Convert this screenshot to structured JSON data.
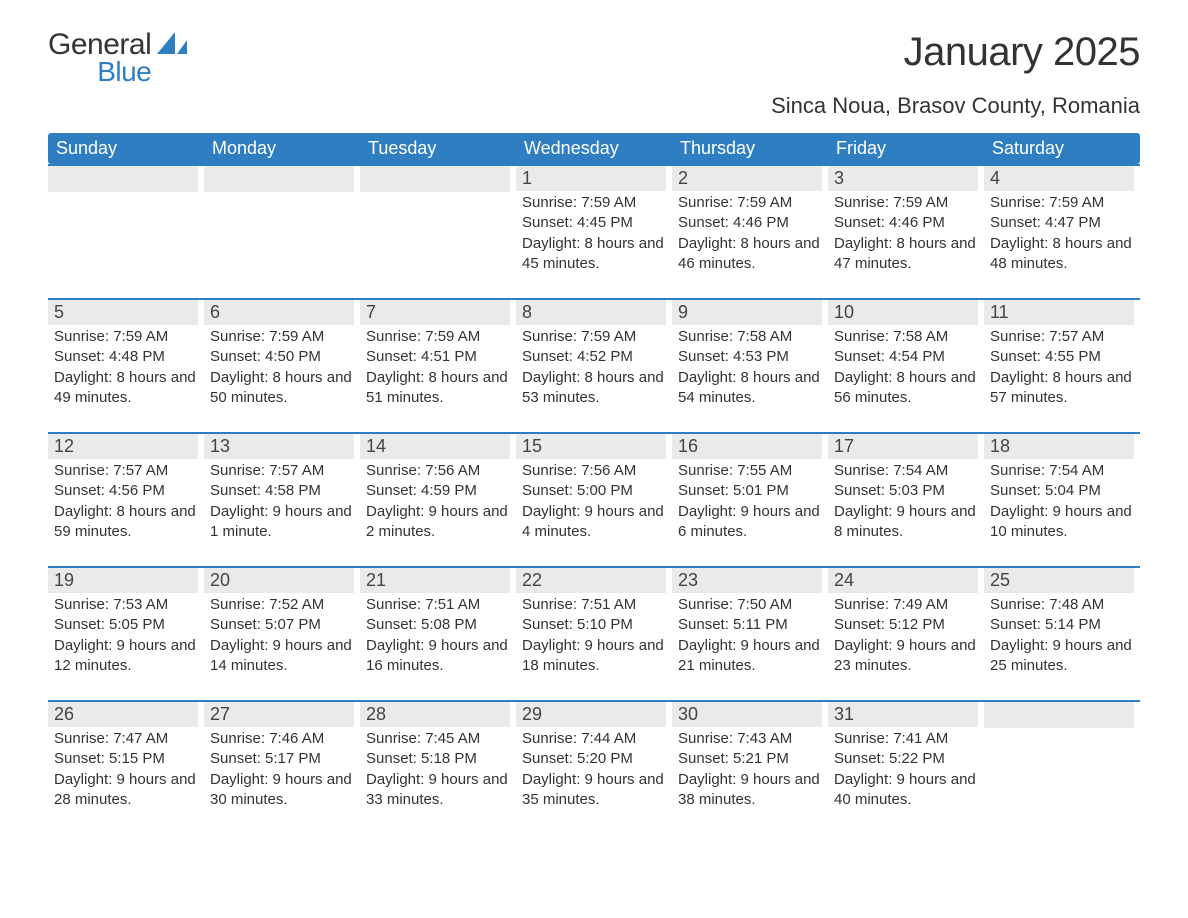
{
  "logo": {
    "line1": "General",
    "line2": "Blue"
  },
  "title": "January 2025",
  "location": "Sinca Noua, Brasov County, Romania",
  "colors": {
    "brand_blue": "#2f7ec2",
    "header_gray": "#eaeaea",
    "text": "#333333",
    "background": "#ffffff"
  },
  "dow": [
    "Sunday",
    "Monday",
    "Tuesday",
    "Wednesday",
    "Thursday",
    "Friday",
    "Saturday"
  ],
  "weeks": [
    [
      {
        "day": "",
        "sunrise": "",
        "sunset": "",
        "daylight": ""
      },
      {
        "day": "",
        "sunrise": "",
        "sunset": "",
        "daylight": ""
      },
      {
        "day": "",
        "sunrise": "",
        "sunset": "",
        "daylight": ""
      },
      {
        "day": "1",
        "sunrise": "Sunrise: 7:59 AM",
        "sunset": "Sunset: 4:45 PM",
        "daylight": "Daylight: 8 hours and 45 minutes."
      },
      {
        "day": "2",
        "sunrise": "Sunrise: 7:59 AM",
        "sunset": "Sunset: 4:46 PM",
        "daylight": "Daylight: 8 hours and 46 minutes."
      },
      {
        "day": "3",
        "sunrise": "Sunrise: 7:59 AM",
        "sunset": "Sunset: 4:46 PM",
        "daylight": "Daylight: 8 hours and 47 minutes."
      },
      {
        "day": "4",
        "sunrise": "Sunrise: 7:59 AM",
        "sunset": "Sunset: 4:47 PM",
        "daylight": "Daylight: 8 hours and 48 minutes."
      }
    ],
    [
      {
        "day": "5",
        "sunrise": "Sunrise: 7:59 AM",
        "sunset": "Sunset: 4:48 PM",
        "daylight": "Daylight: 8 hours and 49 minutes."
      },
      {
        "day": "6",
        "sunrise": "Sunrise: 7:59 AM",
        "sunset": "Sunset: 4:50 PM",
        "daylight": "Daylight: 8 hours and 50 minutes."
      },
      {
        "day": "7",
        "sunrise": "Sunrise: 7:59 AM",
        "sunset": "Sunset: 4:51 PM",
        "daylight": "Daylight: 8 hours and 51 minutes."
      },
      {
        "day": "8",
        "sunrise": "Sunrise: 7:59 AM",
        "sunset": "Sunset: 4:52 PM",
        "daylight": "Daylight: 8 hours and 53 minutes."
      },
      {
        "day": "9",
        "sunrise": "Sunrise: 7:58 AM",
        "sunset": "Sunset: 4:53 PM",
        "daylight": "Daylight: 8 hours and 54 minutes."
      },
      {
        "day": "10",
        "sunrise": "Sunrise: 7:58 AM",
        "sunset": "Sunset: 4:54 PM",
        "daylight": "Daylight: 8 hours and 56 minutes."
      },
      {
        "day": "11",
        "sunrise": "Sunrise: 7:57 AM",
        "sunset": "Sunset: 4:55 PM",
        "daylight": "Daylight: 8 hours and 57 minutes."
      }
    ],
    [
      {
        "day": "12",
        "sunrise": "Sunrise: 7:57 AM",
        "sunset": "Sunset: 4:56 PM",
        "daylight": "Daylight: 8 hours and 59 minutes."
      },
      {
        "day": "13",
        "sunrise": "Sunrise: 7:57 AM",
        "sunset": "Sunset: 4:58 PM",
        "daylight": "Daylight: 9 hours and 1 minute."
      },
      {
        "day": "14",
        "sunrise": "Sunrise: 7:56 AM",
        "sunset": "Sunset: 4:59 PM",
        "daylight": "Daylight: 9 hours and 2 minutes."
      },
      {
        "day": "15",
        "sunrise": "Sunrise: 7:56 AM",
        "sunset": "Sunset: 5:00 PM",
        "daylight": "Daylight: 9 hours and 4 minutes."
      },
      {
        "day": "16",
        "sunrise": "Sunrise: 7:55 AM",
        "sunset": "Sunset: 5:01 PM",
        "daylight": "Daylight: 9 hours and 6 minutes."
      },
      {
        "day": "17",
        "sunrise": "Sunrise: 7:54 AM",
        "sunset": "Sunset: 5:03 PM",
        "daylight": "Daylight: 9 hours and 8 minutes."
      },
      {
        "day": "18",
        "sunrise": "Sunrise: 7:54 AM",
        "sunset": "Sunset: 5:04 PM",
        "daylight": "Daylight: 9 hours and 10 minutes."
      }
    ],
    [
      {
        "day": "19",
        "sunrise": "Sunrise: 7:53 AM",
        "sunset": "Sunset: 5:05 PM",
        "daylight": "Daylight: 9 hours and 12 minutes."
      },
      {
        "day": "20",
        "sunrise": "Sunrise: 7:52 AM",
        "sunset": "Sunset: 5:07 PM",
        "daylight": "Daylight: 9 hours and 14 minutes."
      },
      {
        "day": "21",
        "sunrise": "Sunrise: 7:51 AM",
        "sunset": "Sunset: 5:08 PM",
        "daylight": "Daylight: 9 hours and 16 minutes."
      },
      {
        "day": "22",
        "sunrise": "Sunrise: 7:51 AM",
        "sunset": "Sunset: 5:10 PM",
        "daylight": "Daylight: 9 hours and 18 minutes."
      },
      {
        "day": "23",
        "sunrise": "Sunrise: 7:50 AM",
        "sunset": "Sunset: 5:11 PM",
        "daylight": "Daylight: 9 hours and 21 minutes."
      },
      {
        "day": "24",
        "sunrise": "Sunrise: 7:49 AM",
        "sunset": "Sunset: 5:12 PM",
        "daylight": "Daylight: 9 hours and 23 minutes."
      },
      {
        "day": "25",
        "sunrise": "Sunrise: 7:48 AM",
        "sunset": "Sunset: 5:14 PM",
        "daylight": "Daylight: 9 hours and 25 minutes."
      }
    ],
    [
      {
        "day": "26",
        "sunrise": "Sunrise: 7:47 AM",
        "sunset": "Sunset: 5:15 PM",
        "daylight": "Daylight: 9 hours and 28 minutes."
      },
      {
        "day": "27",
        "sunrise": "Sunrise: 7:46 AM",
        "sunset": "Sunset: 5:17 PM",
        "daylight": "Daylight: 9 hours and 30 minutes."
      },
      {
        "day": "28",
        "sunrise": "Sunrise: 7:45 AM",
        "sunset": "Sunset: 5:18 PM",
        "daylight": "Daylight: 9 hours and 33 minutes."
      },
      {
        "day": "29",
        "sunrise": "Sunrise: 7:44 AM",
        "sunset": "Sunset: 5:20 PM",
        "daylight": "Daylight: 9 hours and 35 minutes."
      },
      {
        "day": "30",
        "sunrise": "Sunrise: 7:43 AM",
        "sunset": "Sunset: 5:21 PM",
        "daylight": "Daylight: 9 hours and 38 minutes."
      },
      {
        "day": "31",
        "sunrise": "Sunrise: 7:41 AM",
        "sunset": "Sunset: 5:22 PM",
        "daylight": "Daylight: 9 hours and 40 minutes."
      },
      {
        "day": "",
        "sunrise": "",
        "sunset": "",
        "daylight": ""
      }
    ]
  ]
}
